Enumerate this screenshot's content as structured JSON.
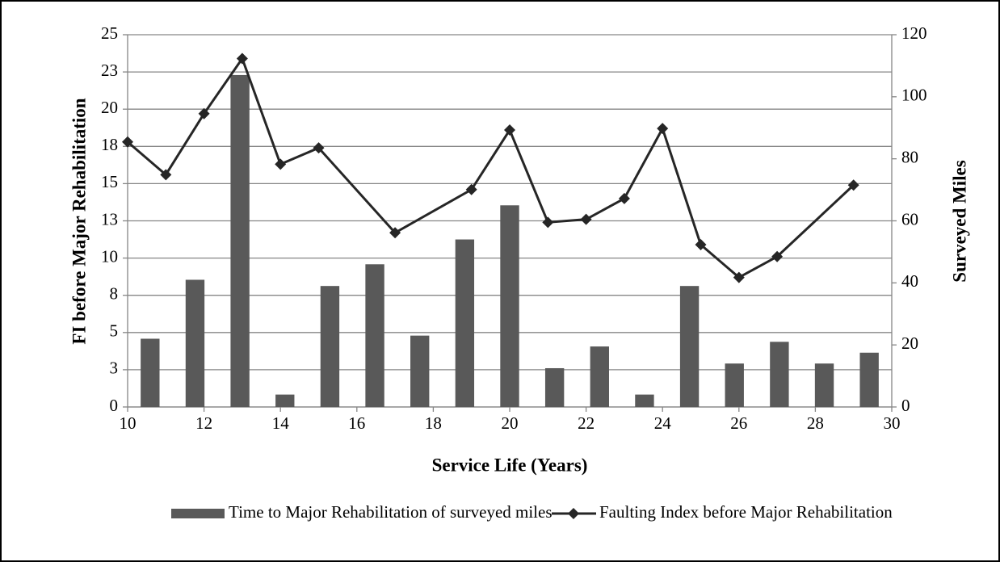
{
  "chart_data": {
    "type": "bar-line",
    "x_label": "Service Life (Years)",
    "y_label": "FI before Major Rehabilitation",
    "y2_label": "Surveyed Miles",
    "x": [
      10,
      11,
      12,
      13,
      14,
      15,
      17,
      19,
      20,
      21,
      22,
      23,
      24,
      25,
      26,
      27,
      29
    ],
    "xlim": [
      10,
      30
    ],
    "xticks": [
      10,
      12,
      14,
      16,
      18,
      20,
      22,
      24,
      26,
      28,
      30
    ],
    "ylim": [
      0,
      25
    ],
    "yticks": [
      0,
      {
        "value": 2.5,
        "label": "3"
      },
      5,
      {
        "value": 7.5,
        "label": "8"
      },
      10,
      {
        "value": 12.5,
        "label": "13"
      },
      15,
      {
        "value": 17.5,
        "label": "18"
      },
      20,
      {
        "value": 22.5,
        "label": "23"
      },
      25
    ],
    "y2lim": [
      0,
      120
    ],
    "y2ticks": [
      0,
      20,
      40,
      60,
      80,
      100,
      120
    ],
    "grid": true,
    "series": [
      {
        "name": "Time to Major Rehabilitation of surveyed miles",
        "type": "bar",
        "axis": "y2",
        "color": "#595959",
        "values": [
          22,
          41,
          107,
          4,
          39,
          46,
          23,
          54,
          65,
          12.5,
          19.5,
          4,
          39,
          14,
          21,
          14,
          17.5
        ]
      },
      {
        "name": "Faulting Index before Major Rehabilitation",
        "type": "line",
        "color": "#262626",
        "values": [
          17.8,
          15.6,
          19.7,
          23.4,
          16.3,
          17.4,
          11.7,
          14.6,
          18.6,
          12.4,
          12.6,
          14.0,
          18.7,
          10.9,
          8.7,
          10.1,
          14.9
        ]
      }
    ]
  }
}
